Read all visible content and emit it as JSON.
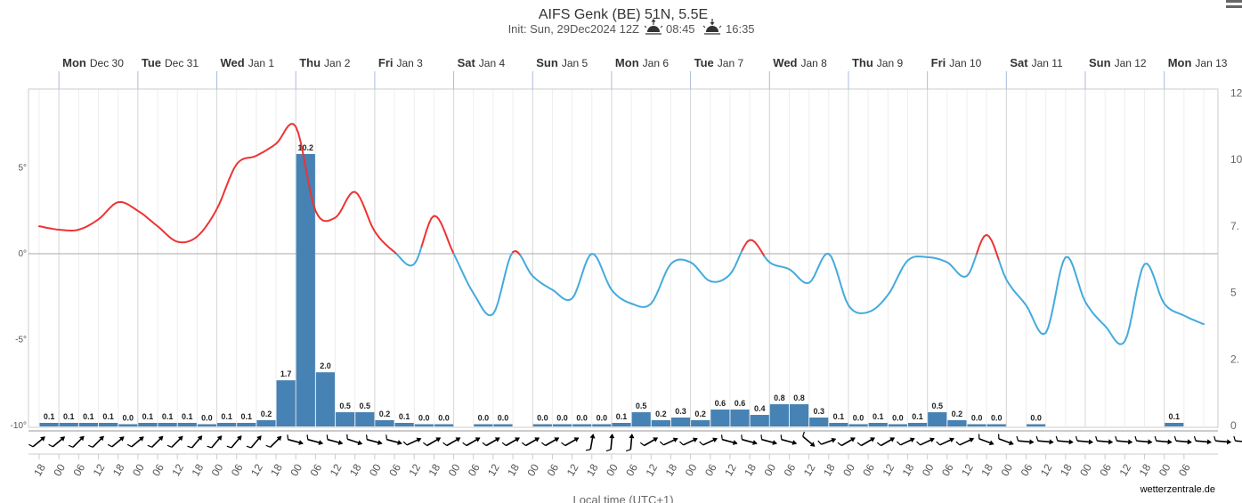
{
  "chart_data": {
    "type": "line",
    "title": "AIFS Genk (BE) 51N, 5.5E",
    "subtitle": {
      "init_label": "Init: Sun, 29Dec2024 12Z",
      "sunrise_icon": "sunrise-icon",
      "sunrise": "08:45",
      "sunset_icon": "sunset-icon",
      "sunset": "16:35"
    },
    "xlabel": "Local time (UTC+1)",
    "x_start": "2024-12-29 18:00",
    "x_end": "2025-01-13 18:00",
    "days": [
      {
        "name": "Mon",
        "date": "Dec 30"
      },
      {
        "name": "Tue",
        "date": "Dec 31"
      },
      {
        "name": "Wed",
        "date": "Jan 1"
      },
      {
        "name": "Thu",
        "date": "Jan 2"
      },
      {
        "name": "Fri",
        "date": "Jan 3"
      },
      {
        "name": "Sat",
        "date": "Jan 4"
      },
      {
        "name": "Sun",
        "date": "Jan 5"
      },
      {
        "name": "Mon",
        "date": "Jan 6"
      },
      {
        "name": "Tue",
        "date": "Jan 7"
      },
      {
        "name": "Wed",
        "date": "Jan 8"
      },
      {
        "name": "Thu",
        "date": "Jan 9"
      },
      {
        "name": "Fri",
        "date": "Jan 10"
      },
      {
        "name": "Sat",
        "date": "Jan 11"
      },
      {
        "name": "Sun",
        "date": "Jan 12"
      },
      {
        "name": "Mon",
        "date": "Jan 13"
      }
    ],
    "hour_labels": [
      "18",
      "00",
      "06",
      "12",
      "18",
      "00",
      "06",
      "12",
      "18",
      "00",
      "06",
      "12",
      "18",
      "00",
      "06",
      "12",
      "18",
      "00",
      "06",
      "12",
      "18",
      "00",
      "06",
      "12",
      "18",
      "00",
      "06",
      "12",
      "18",
      "00",
      "06",
      "12",
      "18",
      "00",
      "06",
      "12",
      "18",
      "00",
      "06",
      "12",
      "18",
      "00",
      "06",
      "12",
      "18",
      "00",
      "06",
      "12",
      "18",
      "00",
      "06",
      "12",
      "18",
      "00",
      "06",
      "12",
      "18",
      "00",
      "06"
    ],
    "y_left": {
      "ticks": [
        "5°",
        "0°",
        "-5°",
        "-10°"
      ],
      "values": [
        5,
        0,
        -5,
        -10
      ],
      "range": [
        -10,
        10
      ]
    },
    "y_right": {
      "ticks": [
        "12",
        "10",
        "7.",
        "5",
        "2.",
        "0"
      ],
      "range": [
        0,
        12.5
      ]
    },
    "colors": {
      "warm": "#ee3333",
      "cold": "#44aadd",
      "bars": "#4682b4",
      "zero_line": "#aaaaaa"
    },
    "series": [
      {
        "type": "line",
        "temp_times_h": [
          0,
          6,
          12,
          18,
          24,
          30,
          36,
          42,
          48,
          54,
          60,
          66,
          72,
          78,
          84,
          90,
          96,
          102,
          108,
          114,
          120,
          126,
          132,
          138,
          144,
          150,
          156,
          162,
          168,
          174,
          180,
          186,
          192,
          198,
          204,
          210,
          216,
          222,
          228,
          234,
          240,
          246,
          252,
          258,
          264,
          270,
          276,
          282,
          288,
          294,
          300,
          306,
          312,
          318,
          324,
          330,
          336,
          342,
          348,
          354
        ],
        "values": [
          1.6,
          1.4,
          1.4,
          2.0,
          3.0,
          2.5,
          1.6,
          0.7,
          1.0,
          2.6,
          5.2,
          5.7,
          6.4,
          7.4,
          2.5,
          2.1,
          3.6,
          1.3,
          0.1,
          -0.6,
          2.2,
          0.0,
          -2.3,
          -3.5,
          0.1,
          -1.3,
          -2.1,
          -2.6,
          0.0,
          -2.1,
          -2.9,
          -2.9,
          -0.6,
          -0.5,
          -1.6,
          -1.2,
          0.8,
          -0.5,
          -0.9,
          -1.7,
          0.0,
          -3.0,
          -3.4,
          -2.4,
          -0.4,
          -0.2,
          -0.5,
          -1.3,
          1.1,
          -1.5,
          -3.0,
          -4.6,
          -0.2,
          -2.8,
          -4.2,
          -5.1,
          -0.6,
          -2.9,
          -3.6,
          -4.1
        ]
      },
      {
        "type": "bar",
        "times_h": [
          6,
          12,
          18,
          24,
          30,
          36,
          42,
          48,
          54,
          60,
          66,
          72,
          78,
          84,
          90,
          96,
          102,
          108,
          114,
          120,
          126,
          138,
          144,
          156,
          162,
          168,
          174,
          180,
          186,
          192,
          198,
          204,
          210,
          216,
          222,
          228,
          234,
          240,
          246,
          252,
          258,
          264,
          270,
          276,
          282,
          288,
          294,
          306,
          348
        ],
        "values": [
          0.1,
          0.1,
          0.1,
          0.1,
          0.0,
          0.1,
          0.1,
          0.1,
          0.0,
          0.1,
          0.1,
          0.2,
          1.7,
          10.2,
          2.0,
          0.5,
          0.5,
          0.2,
          0.1,
          0.0,
          0.0,
          0.0,
          0.0,
          0.0,
          0.0,
          0.0,
          0.0,
          0.1,
          0.5,
          0.2,
          0.3,
          0.2,
          0.6,
          0.6,
          0.4,
          0.8,
          0.8,
          0.3,
          0.1,
          0.0,
          0.1,
          0.0,
          0.1,
          0.5,
          0.2,
          0.0,
          0.0,
          0.0,
          0.1
        ],
        "labels": [
          "0.1",
          "0.1",
          "0.1",
          "0.1",
          "0.0",
          "0.1",
          "0.1",
          "0.1",
          "0.0",
          "0.1",
          "0.1",
          "0.2",
          "1.7",
          "10.2",
          "2.0",
          "0.5",
          "0.5",
          "0.2",
          "0.1",
          "0.0",
          "0.0",
          "0.0",
          "0.0",
          "0.0",
          "0.0",
          "0.0",
          "0.0",
          "0.1",
          "0.5",
          "0.2",
          "0.3",
          "0.2",
          "0.6",
          "0.6",
          "0.4",
          "0.8",
          "0.8",
          "0.3",
          "0.1",
          "0.0",
          "0.1",
          "0.0",
          "0.1",
          "0.5",
          "0.2",
          "0.0",
          "0.0",
          "0.0",
          "0.1"
        ]
      }
    ],
    "wind_arrow_angles_deg": [
      -40,
      -40,
      -45,
      -45,
      -40,
      -40,
      -45,
      -45,
      -50,
      -50,
      -50,
      -50,
      -45,
      15,
      15,
      15,
      18,
      15,
      15,
      -25,
      -30,
      -30,
      -30,
      -30,
      -30,
      -30,
      -30,
      -30,
      -80,
      -85,
      -85,
      -30,
      -25,
      -25,
      -25,
      15,
      15,
      15,
      15,
      40,
      -20,
      -30,
      -30,
      -30,
      -25,
      -25,
      -25,
      -25,
      20,
      20,
      5,
      5,
      5,
      5,
      5,
      5,
      5,
      5,
      5,
      5,
      5,
      5
    ]
  },
  "credit": "wetterzentrale.de",
  "menu_icon": "hamburger-menu-icon"
}
